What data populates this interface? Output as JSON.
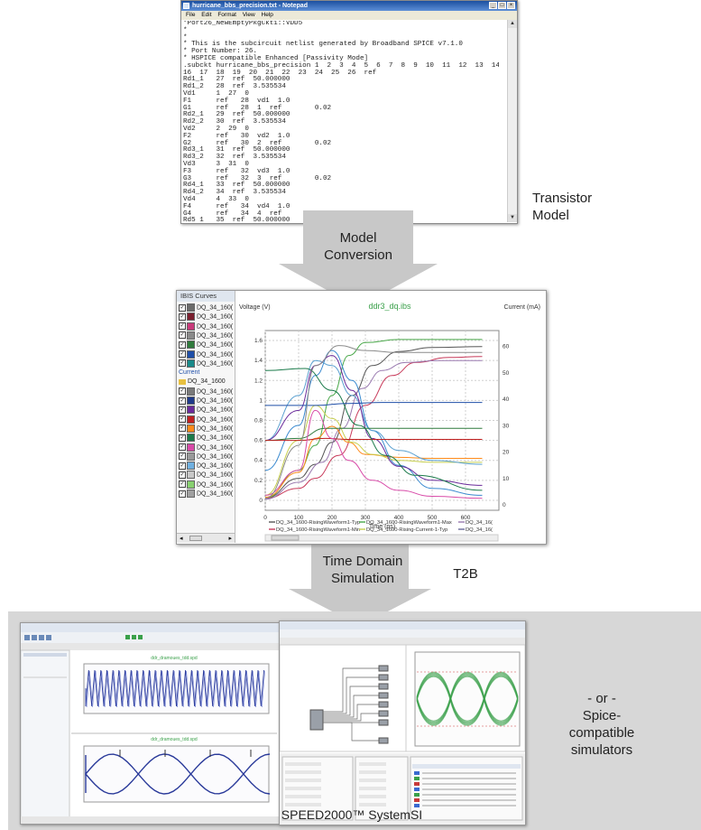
{
  "notepad": {
    "title": "hurricane_bbs_precision.txt - Notepad",
    "menu": [
      "File",
      "Edit",
      "Format",
      "View",
      "Help"
    ],
    "text": "*Port26_NewEmptyPkgCkt1::VDD5\n*\n*\n* This is the subcircuit netlist generated by Broadband SPICE v7.1.0\n* Port Number: 26.\n* HSPICE compatible Enhanced [Passivity Mode]\n.subckt hurricane_bbs_precision 1  2  3  4  5  6  7  8  9  10  11  12  13  14  15\n16  17  18  19  20  21  22  23  24  25  26  ref\nRd1_1   27  ref  50.000000\nRd1_2   28  ref  3.535534\nVd1     1  27  0\nF1      ref   28  vd1  1.0\nG1      ref   28  1  ref        0.02\nRd2_1   29  ref  50.000000\nRd2_2   30  ref  3.535534\nVd2     2  29  0\nF2      ref   30  vd2  1.0\nG2      ref   30  2  ref        0.02\nRd3_1   31  ref  50.000000\nRd3_2   32  ref  3.535534\nVd3     3  31  0\nF3      ref   32  vd3  1.0\nG3      ref   32  3  ref        0.02\nRd4_1   33  ref  50.000000\nRd4_2   34  ref  3.535534\nVd4     4  33  0\nF4      ref   34  vd4  1.0\nG4      ref   34  4  ref        0.02\nRd5_1   35  ref  50.000000\nRd5_2   36  ref  3.535534"
  },
  "labels": {
    "transistor_model": [
      "Transistor",
      "Model"
    ],
    "model_conversion": [
      "Model",
      "Conversion"
    ],
    "time_domain": [
      "Time Domain",
      "Simulation"
    ],
    "t2b": "T2B",
    "or_spice": [
      "- or -",
      "Spice-compatible",
      "simulators"
    ],
    "speed2000": "SPEED2000™ SystemSI"
  },
  "ibis_window": {
    "sidebar_title": "IBIS Curves",
    "group_current": "Current",
    "folder": "DQ_34_1600",
    "item_label": "DQ_34_160(",
    "swatches_top": [
      "#6b6b6b",
      "#7a1f2e",
      "#c83a7a",
      "#8a8a8a",
      "#2f7a3c",
      "#1f4fa8",
      "#1a8a8a"
    ],
    "swatches_bottom": [
      "#7a7a7a",
      "#1f3a8a",
      "#6a2a9a",
      "#c02020",
      "#ff8a1a",
      "#1a7a4a",
      "#d84aa8",
      "#9a9a9a",
      "#70b0e0",
      "#c8c8c8",
      "#88d070",
      "#a0a0a0"
    ]
  },
  "chart_data": {
    "type": "line",
    "title": "ddr3_dq.ibs",
    "ylabel_left": "Voltage (V)",
    "ylabel_right": "Current (mA)",
    "xlabel": "Time (ps)",
    "xlim": [
      0,
      700
    ],
    "ylim_left": [
      -0.1,
      1.7
    ],
    "ylim_right": [
      -2,
      66
    ],
    "x_ticks": [
      0,
      100,
      200,
      300,
      400,
      500,
      600
    ],
    "y_left_ticks": [
      0,
      0.2,
      0.4,
      0.6,
      0.8,
      1.0,
      1.2,
      1.4,
      1.6
    ],
    "y_right_ticks": [
      0,
      10,
      20,
      30,
      40,
      50,
      60
    ],
    "grid": true,
    "legend_placement": "bottom",
    "legend": [
      {
        "name": "DQ_34_1600-RisingWaveform1-Typ",
        "color": "#555555"
      },
      {
        "name": "DQ_34_1600-RisingWaveform1-Max",
        "color": "#4aa84a"
      },
      {
        "name": "DQ_34_16(",
        "color": "#9a7ab0"
      },
      {
        "name": "DQ_34_1600-RisingWaveform1-Min",
        "color": "#c83a5a"
      },
      {
        "name": "DQ_34_1600-Rising-Current-1-Typ",
        "color": "#c8d050"
      },
      {
        "name": "DQ_34_16(",
        "color": "#6a6a9a"
      }
    ],
    "series": [
      {
        "color": "#555555",
        "x": [
          0,
          100,
          150,
          200,
          260,
          320,
          400,
          500,
          650
        ],
        "y": [
          0.02,
          0.22,
          0.36,
          0.58,
          1.05,
          1.35,
          1.49,
          1.53,
          1.54
        ]
      },
      {
        "color": "#4aa84a",
        "x": [
          0,
          100,
          150,
          200,
          250,
          300,
          400,
          500,
          650
        ],
        "y": [
          0.02,
          0.3,
          0.55,
          1.05,
          1.45,
          1.58,
          1.61,
          1.61,
          1.61
        ]
      },
      {
        "color": "#c83a5a",
        "x": [
          0,
          100,
          150,
          220,
          300,
          380,
          450,
          550,
          650
        ],
        "y": [
          0.02,
          0.12,
          0.22,
          0.45,
          0.95,
          1.25,
          1.38,
          1.43,
          1.44
        ]
      },
      {
        "color": "#9a7ab0",
        "x": [
          0,
          100,
          170,
          230,
          290,
          350,
          420,
          520,
          650
        ],
        "y": [
          0.01,
          0.18,
          0.38,
          0.72,
          1.12,
          1.3,
          1.38,
          1.4,
          1.4
        ]
      },
      {
        "color": "#ff8a1a",
        "x": [
          0,
          100,
          150,
          200,
          250,
          300,
          400,
          500,
          650
        ],
        "y": [
          0.03,
          0.28,
          0.62,
          0.74,
          0.58,
          0.46,
          0.43,
          0.42,
          0.42
        ]
      },
      {
        "color": "#3a8ad0",
        "x": [
          0,
          100,
          150,
          200,
          260,
          320,
          400,
          500,
          650
        ],
        "y": [
          0.3,
          0.75,
          1.25,
          1.5,
          1.2,
          0.7,
          0.35,
          0.12,
          0.05
        ]
      },
      {
        "color": "#c8d050",
        "x": [
          0,
          100,
          150,
          200,
          260,
          320,
          400,
          500,
          650
        ],
        "y": [
          0.05,
          0.6,
          0.95,
          0.82,
          0.58,
          0.46,
          0.4,
          0.38,
          0.38
        ]
      },
      {
        "color": "#5aa0d0",
        "x": [
          0,
          100,
          150,
          200,
          260,
          320,
          400,
          500,
          650
        ],
        "y": [
          0.6,
          1.05,
          1.4,
          1.35,
          1.05,
          0.7,
          0.5,
          0.4,
          0.36
        ]
      },
      {
        "color": "#6a2a9a",
        "x": [
          0,
          100,
          150,
          200,
          260,
          320,
          400,
          500,
          650
        ],
        "y": [
          0.6,
          0.9,
          1.35,
          1.45,
          1.1,
          0.62,
          0.34,
          0.2,
          0.15
        ]
      },
      {
        "color": "#2f7a3c",
        "x": [
          0,
          100,
          180,
          250,
          320,
          400,
          650
        ],
        "y": [
          0.6,
          0.62,
          0.72,
          0.72,
          0.72,
          0.72,
          0.72
        ]
      },
      {
        "color": "#c02020",
        "x": [
          0,
          100,
          180,
          250,
          320,
          400,
          650
        ],
        "y": [
          0.6,
          0.6,
          0.62,
          0.61,
          0.61,
          0.61,
          0.61
        ]
      },
      {
        "color": "#d84aa8",
        "x": [
          0,
          100,
          150,
          200,
          250,
          320,
          400,
          500,
          650
        ],
        "y": [
          0.05,
          0.3,
          0.9,
          0.62,
          0.4,
          0.2,
          0.1,
          0.04,
          0.02
        ]
      },
      {
        "color": "#1a7a4a",
        "x": [
          0,
          120,
          200,
          280,
          360,
          450,
          650
        ],
        "y": [
          1.3,
          1.32,
          1.1,
          0.75,
          0.45,
          0.25,
          0.1
        ]
      },
      {
        "color": "#1f4fa8",
        "x": [
          0,
          150,
          250,
          350,
          450,
          550,
          650
        ],
        "y": [
          0.95,
          0.95,
          0.97,
          0.98,
          0.98,
          0.98,
          0.98
        ]
      },
      {
        "color": "#8a8a8a",
        "x": [
          0,
          100,
          150,
          220,
          300,
          400,
          500,
          650
        ],
        "y": [
          0.02,
          0.55,
          1.35,
          1.55,
          1.5,
          1.48,
          1.48,
          1.48
        ]
      }
    ]
  },
  "eye_chart": {
    "type": "eye",
    "eye_color": "#3aa04a",
    "eye_count": 3
  }
}
